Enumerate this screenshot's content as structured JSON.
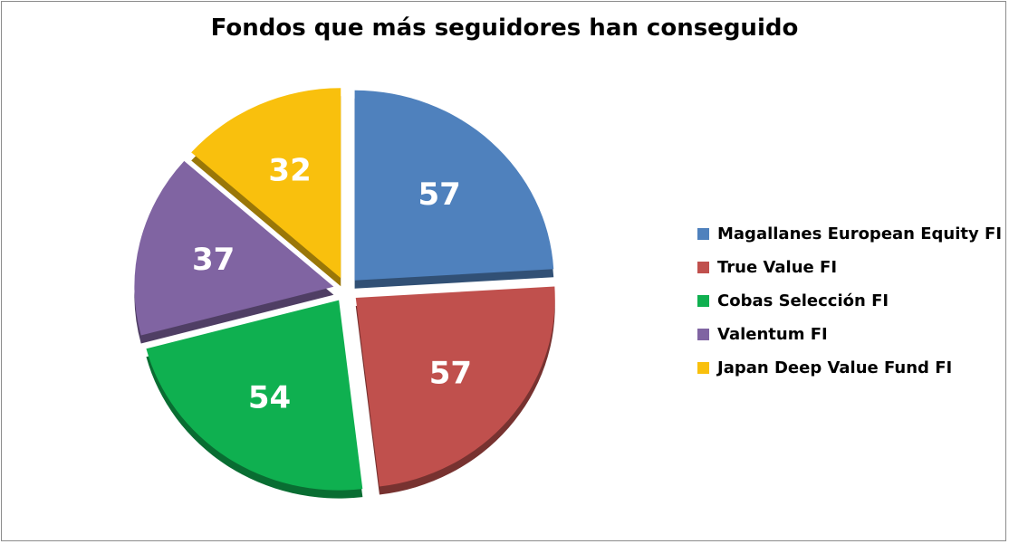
{
  "chart_data": {
    "type": "pie",
    "title": "Fondos que más seguidores han conseguido",
    "legend_position": "right",
    "slices": [
      {
        "label": "Magallanes European Equity FI",
        "value": 57,
        "color": "#4f81bd"
      },
      {
        "label": "True Value FI",
        "value": 57,
        "color": "#c0504d"
      },
      {
        "label": "Cobas Selección FI",
        "value": 54,
        "color": "#0fb050"
      },
      {
        "label": "Valentum FI",
        "value": 37,
        "color": "#8064a2"
      },
      {
        "label": "Japan Deep Value Fund FI",
        "value": 32,
        "color": "#f9c00d"
      }
    ]
  }
}
